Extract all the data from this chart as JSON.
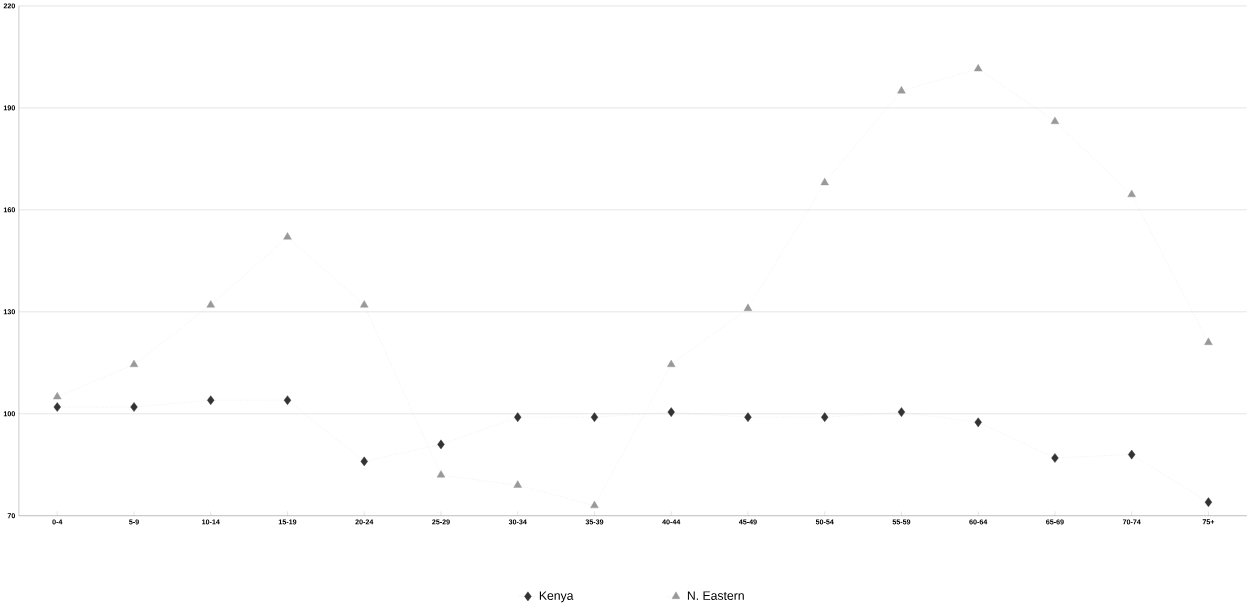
{
  "chart_data": {
    "type": "line",
    "categories": [
      "0-4",
      "5-9",
      "10-14",
      "15-19",
      "20-24",
      "25-29",
      "30-34",
      "35-39",
      "40-44",
      "45-49",
      "50-54",
      "55-59",
      "60-64",
      "65-69",
      "70-74",
      "75+"
    ],
    "series": [
      {
        "name": "Kenya",
        "color": "#333333",
        "marker": "diamond",
        "values": [
          102,
          102,
          104,
          104,
          86,
          91,
          99,
          99,
          100.5,
          99,
          99,
          100.5,
          97.5,
          87,
          88,
          74
        ]
      },
      {
        "name": "N. Eastern",
        "color": "#999999",
        "marker": "triangle",
        "values": [
          105,
          114.5,
          132,
          152,
          132,
          82,
          79,
          73,
          114.5,
          131,
          168,
          195,
          201.5,
          186,
          164.5,
          121
        ]
      }
    ],
    "ylim": [
      70,
      220
    ],
    "yticks": [
      70,
      100,
      130,
      160,
      190,
      220
    ],
    "grid": "y",
    "legend": "bottom",
    "line_style": "dotted"
  }
}
